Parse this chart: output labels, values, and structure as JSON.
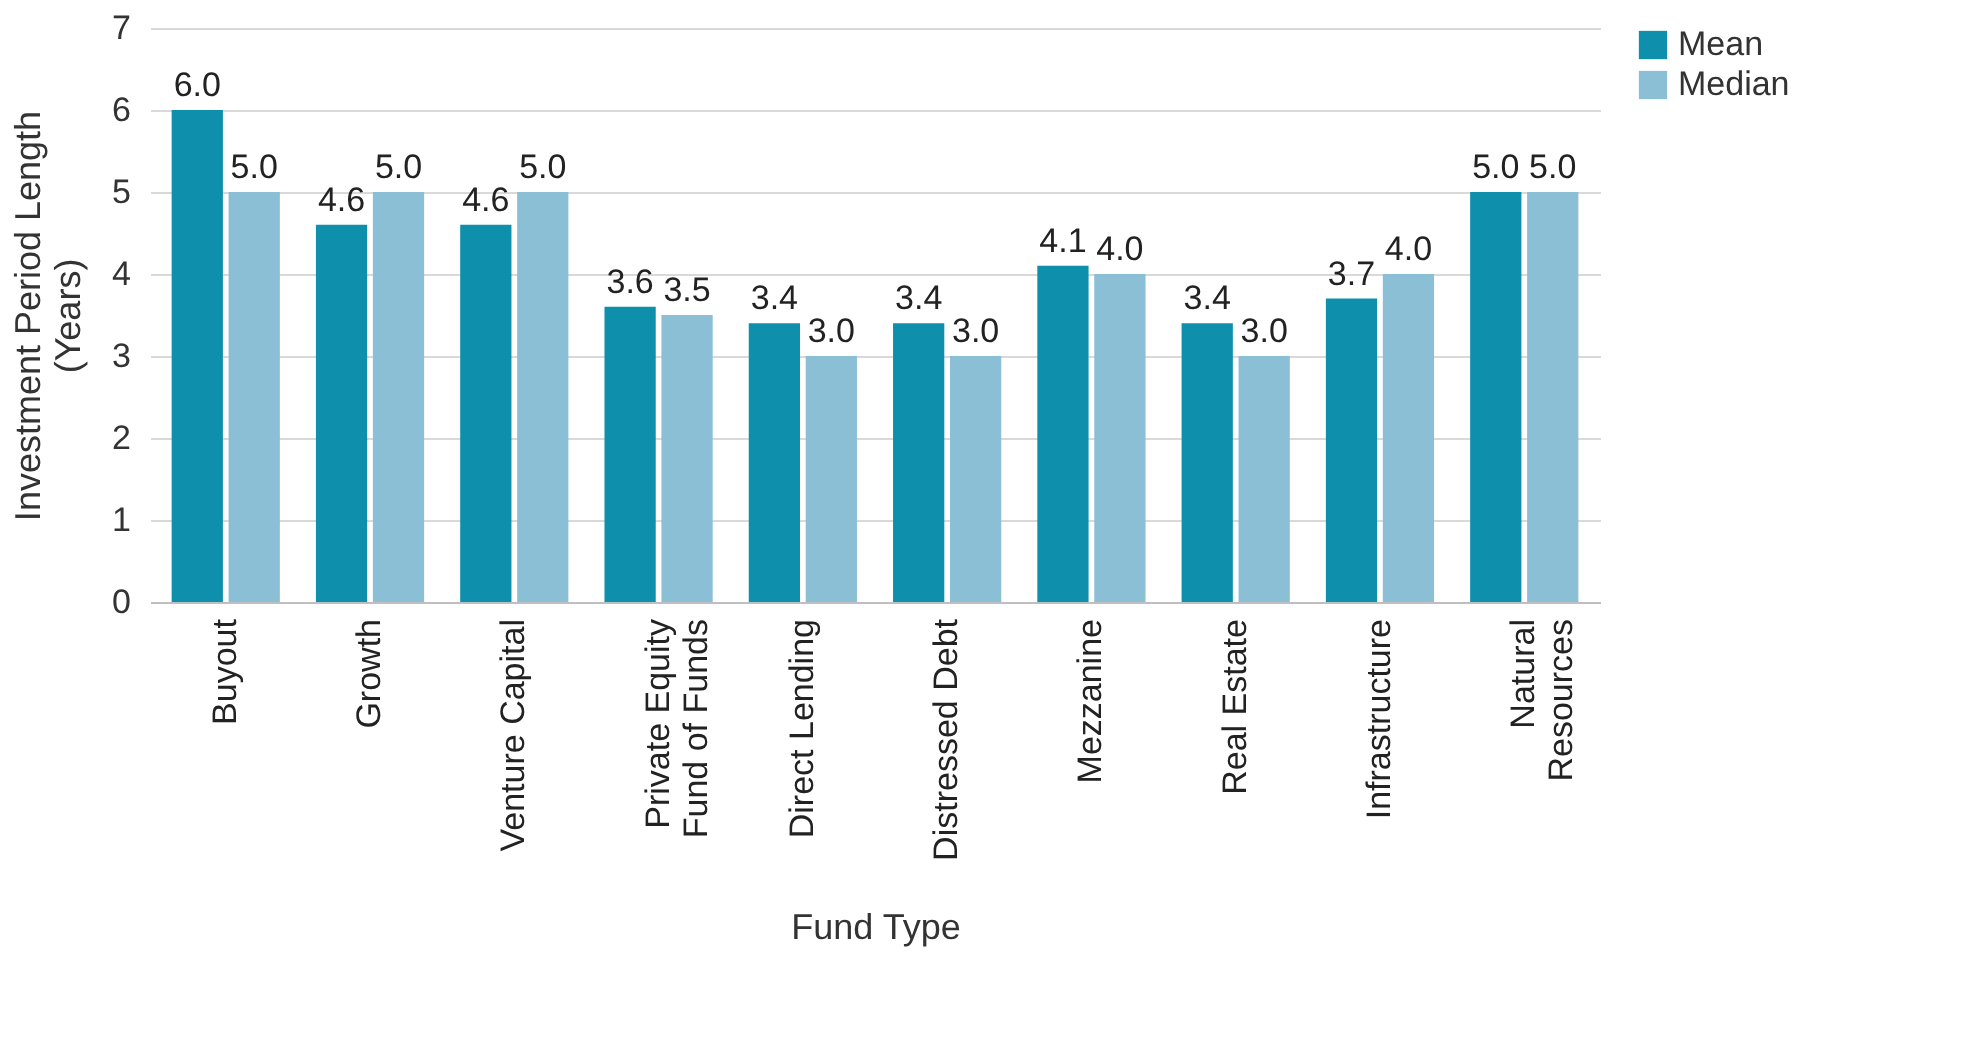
{
  "chart_data": {
    "type": "bar",
    "xlabel": "Fund Type",
    "ylabel": "Investment Period Length\n(Years)",
    "categories": [
      "Buyout",
      "Growth",
      "Venture Capital",
      "Private Equity\nFund of Funds",
      "Direct Lending",
      "Distressed Debt",
      "Mezzanine",
      "Real Estate",
      "Infrastructure",
      "Natural\nResources"
    ],
    "series": [
      {
        "name": "Mean",
        "color": "#0e8fab",
        "values": [
          6.0,
          4.6,
          4.6,
          3.6,
          3.4,
          3.4,
          4.1,
          3.4,
          3.7,
          5.0
        ],
        "value_labels": [
          "6.0",
          "4.6",
          "4.6",
          "3.6",
          "3.4",
          "3.4",
          "4.1",
          "3.4",
          "3.7",
          "5.0"
        ]
      },
      {
        "name": "Median",
        "color": "#8bbfd6",
        "values": [
          5.0,
          5.0,
          5.0,
          3.5,
          3.0,
          3.0,
          4.0,
          3.0,
          4.0,
          5.0
        ],
        "value_labels": [
          "5.0",
          "5.0",
          "5.0",
          "3.5",
          "3.0",
          "3.0",
          "4.0",
          "3.0",
          "4.0",
          "5.0"
        ]
      }
    ],
    "ylim": [
      0,
      7
    ],
    "yticks": [
      0,
      1,
      2,
      3,
      4,
      5,
      6,
      7
    ],
    "grid": "y",
    "legend": "right"
  }
}
